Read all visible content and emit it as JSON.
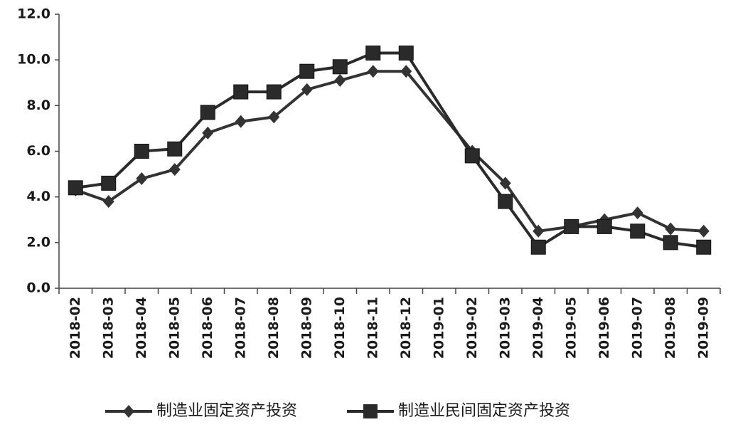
{
  "chart_data": {
    "type": "line",
    "categories": [
      "2018-02",
      "2018-03",
      "2018-04",
      "2018-05",
      "2018-06",
      "2018-07",
      "2018-08",
      "2018-09",
      "2018-10",
      "2018-11",
      "2018-12",
      "2019-01",
      "2019-02",
      "2019-03",
      "2019-04",
      "2019-05",
      "2019-06",
      "2019-07",
      "2019-08",
      "2019-09"
    ],
    "series": [
      {
        "name": "制造业固定资产投资",
        "color": "#333333",
        "marker": "diamond",
        "values": [
          4.3,
          3.8,
          4.8,
          5.2,
          6.8,
          7.3,
          7.5,
          8.7,
          9.1,
          9.5,
          9.5,
          null,
          6.0,
          4.6,
          2.5,
          2.7,
          3.0,
          3.3,
          2.6,
          2.5
        ]
      },
      {
        "name": "制造业民间固定资产投资",
        "color": "#2a2a2a",
        "marker": "square",
        "values": [
          4.4,
          4.6,
          6.0,
          6.1,
          7.7,
          8.6,
          8.6,
          9.5,
          9.7,
          10.3,
          10.3,
          null,
          5.8,
          3.8,
          1.8,
          2.7,
          2.7,
          2.5,
          2.0,
          1.8
        ]
      }
    ],
    "ylim": [
      0,
      12
    ],
    "yticks": [
      {
        "value": 0,
        "label": "0.0"
      },
      {
        "value": 2,
        "label": "2.0"
      },
      {
        "value": 4,
        "label": "4.0"
      },
      {
        "value": 6,
        "label": "6.0"
      },
      {
        "value": 8,
        "label": "8.0"
      },
      {
        "value": 10,
        "label": "10.0"
      },
      {
        "value": 12,
        "label": "12.0"
      }
    ],
    "legend": "bottom"
  }
}
